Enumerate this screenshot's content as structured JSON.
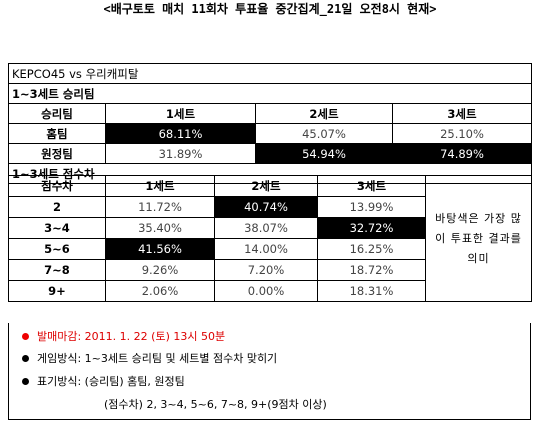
{
  "title": "<배구토토 매치 11회차 투표율 중간집계_21일 오전8시 현재>",
  "match": "KEPCO45 vs 우리캐피탈",
  "win_section": {
    "title": "1~3세트 승리팀",
    "headers": [
      "승리팀",
      "1세트",
      "2세트",
      "3세트"
    ],
    "rows": [
      {
        "label": "홈팀",
        "values": [
          "68.11%",
          "45.07%",
          "25.10%"
        ],
        "highlight": [
          true,
          false,
          false
        ]
      },
      {
        "label": "원정팀",
        "values": [
          "31.89%",
          "54.94%",
          "74.89%"
        ],
        "highlight": [
          false,
          true,
          true
        ]
      }
    ]
  },
  "score_section": {
    "title": "1~3세트 점수차",
    "headers": [
      "점수차",
      "1세트",
      "2세트",
      "3세트"
    ],
    "rows": [
      {
        "label": "2",
        "values": [
          "11.72%",
          "40.74%",
          "13.99%"
        ],
        "highlight": [
          false,
          true,
          false
        ]
      },
      {
        "label": "3~4",
        "values": [
          "35.40%",
          "38.07%",
          "32.72%"
        ],
        "highlight": [
          false,
          false,
          true
        ]
      },
      {
        "label": "5~6",
        "values": [
          "41.56%",
          "14.00%",
          "16.25%"
        ],
        "highlight": [
          true,
          false,
          false
        ]
      },
      {
        "label": "7~8",
        "values": [
          "9.26%",
          "7.20%",
          "18.72%"
        ],
        "highlight": [
          false,
          false,
          false
        ]
      },
      {
        "label": "9+",
        "values": [
          "2.06%",
          "0.00%",
          "18.31%"
        ],
        "highlight": [
          false,
          false,
          false
        ]
      }
    ],
    "note": "바탕색은 가장 많이 투표한 결과를 의미"
  },
  "footer": {
    "deadline": "발매마감: 2011. 1. 22 (토) 13시 50분",
    "game_method": "게임방식: 1~3세트 승리팀 및 세트별 점수차 맞히기",
    "notation": "표기방식: (승리팀) 홈팀, 원정팀",
    "score_notation": "(점수차) 2, 3~4, 5~6, 7~8, 9+(9점차 이상)"
  },
  "colors": {
    "highlight": "#000000",
    "deadline": "#dd0000"
  }
}
